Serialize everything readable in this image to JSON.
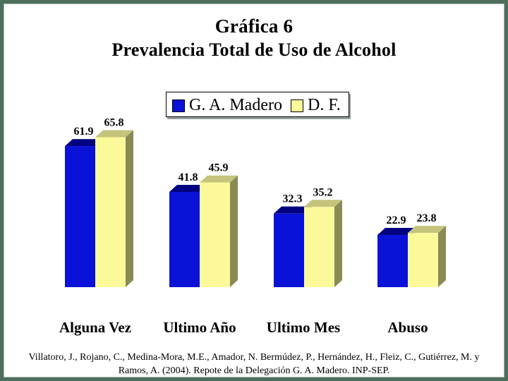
{
  "chart_data": {
    "type": "bar",
    "title": "Gráfica 6",
    "subtitle": "Prevalencia Total de Uso de Alcohol",
    "categories": [
      "Alguna Vez",
      "Ultimo Año",
      "Ultimo Mes",
      "Abuso"
    ],
    "series": [
      {
        "name": "G. A. Madero",
        "values": [
          61.9,
          41.8,
          32.3,
          22.9
        ],
        "color": "#0b12d8"
      },
      {
        "name": "D. F.",
        "values": [
          65.8,
          45.9,
          35.2,
          23.8
        ],
        "color": "#fbf99a"
      }
    ],
    "value_labels": [
      [
        "61.9",
        "41.8",
        "32.3",
        "22.9"
      ],
      [
        "65.8",
        "45.9",
        "35.2",
        "23.8"
      ]
    ],
    "ylim": [
      0,
      70
    ],
    "grid": false,
    "legend_position": "top-center",
    "xlabel": "",
    "ylabel": ""
  },
  "source": "Villatoro, J., Rojano, C., Medina-Mora, M.E., Amador, N. Bermúdez, P., Hernández, H., Fleiz, C., Gutiérrez, M. y Ramos, A. (2004). Repote de la Delegación G. A. Madero. INP-SEP.",
  "colors": {
    "frame": "#4e6e5c",
    "series_1_top": "#000080",
    "series_2_side": "#8a8a55"
  }
}
